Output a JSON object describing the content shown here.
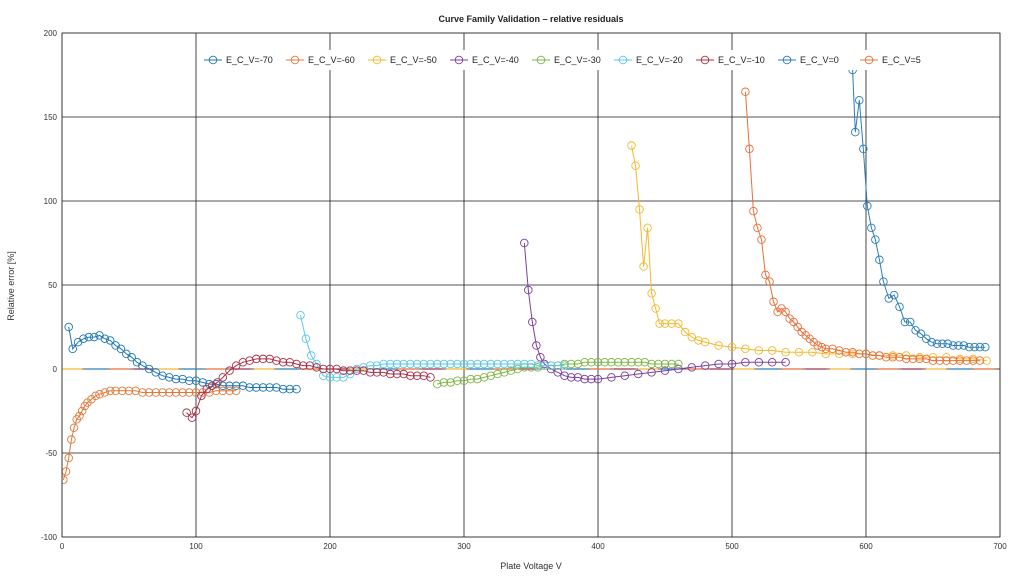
{
  "chart_data": {
    "type": "scatter",
    "title": "Curve Family Validation – relative residuals",
    "xlabel": "Plate Voltage V",
    "ylabel": "Relative error [%]",
    "xlim": [
      0,
      700
    ],
    "ylim": [
      -100,
      200
    ],
    "xticks": [
      0,
      100,
      200,
      300,
      400,
      500,
      600,
      700
    ],
    "yticks": [
      -100,
      -50,
      0,
      50,
      100,
      150,
      200
    ],
    "grid": true,
    "legend_position": "top",
    "series": [
      {
        "name": "E_C_V=-70",
        "color": "#1f77b4",
        "x": [
          5,
          8,
          12,
          16,
          20,
          24,
          28,
          32,
          36,
          40,
          44,
          48,
          52,
          56,
          60,
          65,
          70,
          75,
          80,
          85,
          90,
          95,
          100,
          105,
          110,
          115,
          120,
          125,
          130,
          135,
          140,
          145,
          150,
          155,
          160,
          165,
          170,
          175
        ],
        "y": [
          25,
          12,
          16,
          18,
          19,
          19,
          20,
          18,
          17,
          14,
          12,
          9,
          7,
          4,
          2,
          0,
          -2,
          -4,
          -5,
          -6,
          -6,
          -7,
          -7,
          -8,
          -9,
          -9,
          -10,
          -10,
          -10,
          -10,
          -11,
          -11,
          -11,
          -11,
          -11,
          -12,
          -12,
          -12
        ]
      },
      {
        "name": "E_C_V=-60",
        "color": "#e07a3c",
        "x": [
          1,
          3,
          5,
          7,
          9,
          11,
          13,
          15,
          17,
          19,
          22,
          25,
          28,
          32,
          36,
          40,
          45,
          50,
          55,
          60,
          65,
          70,
          75,
          80,
          85,
          90,
          95,
          100,
          105,
          110,
          115,
          120,
          125,
          130
        ],
        "y": [
          -66,
          -61,
          -53,
          -42,
          -35,
          -30,
          -28,
          -25,
          -22,
          -20,
          -18,
          -16,
          -15,
          -14,
          -13,
          -13,
          -13,
          -13,
          -13,
          -14,
          -14,
          -14,
          -14,
          -14,
          -14,
          -14,
          -14,
          -14,
          -14,
          -14,
          -13,
          -13,
          -13,
          -13
        ]
      },
      {
        "name": "E_C_V=-50",
        "color": "#f5b82e",
        "x": [
          425,
          428,
          431,
          434,
          437,
          440,
          443,
          446,
          450,
          455,
          460,
          465,
          470,
          475,
          480,
          490,
          500,
          510,
          520,
          530,
          540,
          550,
          560,
          570,
          580,
          590,
          600,
          610,
          620,
          630,
          640,
          650,
          660,
          670,
          680,
          690
        ],
        "y": [
          133,
          121,
          95,
          61,
          84,
          45,
          36,
          27,
          27,
          27,
          27,
          22,
          19,
          17,
          16,
          14,
          13,
          12,
          11,
          11,
          10,
          10,
          10,
          9,
          9,
          9,
          9,
          8,
          8,
          8,
          7,
          7,
          7,
          6,
          6,
          5
        ]
      },
      {
        "name": "E_C_V=-40",
        "color": "#7b3f9e",
        "x": [
          345,
          348,
          351,
          354,
          357,
          360,
          365,
          370,
          375,
          380,
          385,
          390,
          395,
          400,
          410,
          420,
          430,
          440,
          450,
          460,
          470,
          480,
          490,
          500,
          510,
          520,
          530,
          540
        ],
        "y": [
          75,
          47,
          28,
          14,
          7,
          3,
          0,
          -2,
          -4,
          -5,
          -5,
          -6,
          -6,
          -6,
          -5,
          -4,
          -3,
          -2,
          -1,
          0,
          1,
          2,
          3,
          3,
          4,
          4,
          4,
          4
        ]
      },
      {
        "name": "E_C_V=-30",
        "color": "#7fb547",
        "x": [
          280,
          285,
          290,
          295,
          300,
          305,
          310,
          315,
          320,
          325,
          330,
          335,
          340,
          345,
          350,
          355,
          360,
          365,
          370,
          375,
          380,
          385,
          390,
          395,
          400,
          405,
          410,
          415,
          420,
          425,
          430,
          435,
          440,
          445,
          450,
          455,
          460
        ],
        "y": [
          -9,
          -8,
          -8,
          -7,
          -7,
          -6,
          -6,
          -5,
          -4,
          -3,
          -2,
          -1,
          0,
          1,
          1,
          1,
          2,
          2,
          2,
          3,
          3,
          3,
          4,
          4,
          4,
          4,
          4,
          4,
          4,
          4,
          4,
          4,
          3,
          3,
          3,
          3,
          3
        ]
      },
      {
        "name": "E_C_V=-20",
        "color": "#5bc8e8",
        "x": [
          178,
          182,
          186,
          190,
          195,
          200,
          205,
          210,
          215,
          220,
          225,
          230,
          235,
          240,
          245,
          250,
          255,
          260,
          265,
          270,
          275,
          280,
          285,
          290,
          295,
          300,
          305,
          310,
          315,
          320,
          325,
          330,
          335,
          340,
          345,
          350,
          355,
          360,
          365,
          370,
          375
        ],
        "y": [
          32,
          18,
          8,
          3,
          -4,
          -5,
          -5,
          -5,
          -3,
          0,
          1,
          2,
          2,
          3,
          3,
          3,
          3,
          3,
          3,
          3,
          3,
          3,
          3,
          3,
          3,
          3,
          3,
          3,
          3,
          3,
          3,
          3,
          3,
          3,
          3,
          3,
          2,
          2,
          2,
          2,
          2
        ]
      },
      {
        "name": "E_C_V=-10",
        "color": "#a8324a",
        "x": [
          93,
          97,
          100,
          104,
          108,
          112,
          116,
          120,
          125,
          130,
          135,
          140,
          145,
          150,
          155,
          160,
          165,
          170,
          175,
          180,
          185,
          190,
          195,
          200,
          205,
          210,
          215,
          220,
          225,
          230,
          235,
          240,
          245,
          250,
          255,
          260,
          265,
          270,
          275
        ],
        "y": [
          -26,
          -29,
          -25,
          -16,
          -12,
          -10,
          -8,
          -5,
          -1,
          2,
          4,
          5,
          6,
          6,
          6,
          5,
          4,
          4,
          3,
          2,
          2,
          1,
          0,
          0,
          0,
          -1,
          -1,
          -1,
          -1,
          -2,
          -2,
          -2,
          -3,
          -3,
          -3,
          -4,
          -4,
          -4,
          -5
        ]
      },
      {
        "name": "E_C_V=0",
        "color": "#2a7db8",
        "x": [
          590,
          592,
          595,
          598,
          601,
          604,
          607,
          610,
          613,
          617,
          621,
          625,
          629,
          633,
          637,
          641,
          645,
          649,
          653,
          657,
          661,
          665,
          669,
          673,
          677,
          681,
          685,
          689
        ],
        "y": [
          178,
          141,
          160,
          131,
          97,
          84,
          77,
          65,
          52,
          42,
          44,
          37,
          28,
          28,
          23,
          21,
          18,
          16,
          15,
          15,
          15,
          14,
          14,
          14,
          13,
          13,
          13,
          13
        ]
      },
      {
        "name": "E_C_V=5",
        "color": "#e8703a",
        "x": [
          510,
          513,
          516,
          519,
          522,
          525,
          528,
          531,
          534,
          537,
          540,
          543,
          546,
          549,
          552,
          555,
          558,
          561,
          564,
          567,
          570,
          575,
          580,
          585,
          590,
          595,
          600,
          605,
          610,
          615,
          620,
          625,
          630,
          635,
          640,
          645,
          650,
          655,
          660,
          665,
          670,
          675,
          680,
          685
        ],
        "y": [
          165,
          131,
          94,
          84,
          77,
          56,
          52,
          40,
          34,
          36,
          34,
          30,
          28,
          25,
          22,
          20,
          18,
          16,
          14,
          13,
          12,
          12,
          11,
          10,
          10,
          9,
          9,
          8,
          8,
          7,
          7,
          7,
          6,
          6,
          6,
          6,
          5,
          5,
          5,
          5,
          5,
          5,
          5,
          5
        ]
      }
    ]
  }
}
